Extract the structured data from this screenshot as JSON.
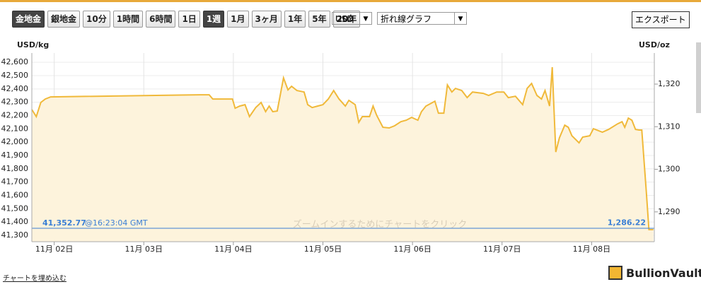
{
  "toolbar": {
    "buttons": [
      "金地金",
      "銀地金",
      "10分",
      "1時間",
      "6時間",
      "1日",
      "1週",
      "1月",
      "3ヶ月",
      "1年",
      "5年",
      "20年"
    ],
    "active": [
      "金地金",
      "1週"
    ],
    "currency": "USD",
    "chart_type": "折れ線グラフ",
    "export": "エクスポート"
  },
  "chart_data": {
    "type": "line",
    "y_label": "USD/kg",
    "y2_label": "USD/oz",
    "watermark": "BullionVault",
    "hint": "ズームインするためにチャートをクリック",
    "color": "#f0b93a",
    "fill": "#fdf3dc",
    "grid": true,
    "x": [
      1.75,
      1.8,
      1.85,
      1.9,
      1.96,
      3.63,
      3.73,
      3.77,
      3.99,
      4.02,
      4.07,
      4.13,
      4.18,
      4.25,
      4.31,
      4.36,
      4.4,
      4.44,
      4.49,
      4.56,
      4.61,
      4.65,
      4.71,
      4.79,
      4.83,
      4.88,
      4.94,
      5.0,
      5.06,
      5.12,
      5.18,
      5.25,
      5.29,
      5.36,
      5.4,
      5.44,
      5.52,
      5.56,
      5.6,
      5.67,
      5.74,
      5.8,
      5.87,
      5.93,
      5.99,
      6.06,
      6.1,
      6.15,
      6.25,
      6.29,
      6.35,
      6.39,
      6.44,
      6.48,
      6.55,
      6.61,
      6.67,
      6.79,
      6.85,
      6.94,
      7.02,
      7.07,
      7.15,
      7.23,
      7.28,
      7.33,
      7.39,
      7.44,
      7.48,
      7.53,
      7.56,
      7.6,
      7.64,
      7.7,
      7.74,
      7.78,
      7.86,
      7.9,
      7.98,
      8.02,
      8.12,
      8.19,
      8.29,
      8.34,
      8.37,
      8.41,
      8.45,
      8.49,
      8.53,
      8.56,
      8.61,
      8.64,
      8.69
    ],
    "values": [
      42245,
      42192,
      42298,
      42324,
      42340,
      42356,
      42356,
      42324,
      42324,
      42255,
      42271,
      42282,
      42192,
      42260,
      42298,
      42229,
      42271,
      42229,
      42234,
      42483,
      42393,
      42420,
      42388,
      42377,
      42282,
      42260,
      42271,
      42282,
      42324,
      42388,
      42324,
      42271,
      42314,
      42282,
      42149,
      42192,
      42192,
      42271,
      42202,
      42112,
      42107,
      42123,
      42154,
      42165,
      42186,
      42165,
      42229,
      42271,
      42308,
      42218,
      42218,
      42430,
      42377,
      42404,
      42388,
      42335,
      42377,
      42367,
      42351,
      42377,
      42377,
      42335,
      42345,
      42282,
      42404,
      42441,
      42351,
      42324,
      42388,
      42271,
      42563,
      41926,
      42032,
      42128,
      42112,
      42048,
      41995,
      42038,
      42048,
      42101,
      42075,
      42096,
      42138,
      42154,
      42112,
      42181,
      42165,
      42096,
      42091,
      42091,
      41634,
      41343,
      41343
    ],
    "xlim": [
      1.75,
      8.7
    ],
    "xticks": [
      {
        "value": 2,
        "label": "11月 02日"
      },
      {
        "value": 3,
        "label": "11月 03日"
      },
      {
        "value": 4,
        "label": "11月 04日"
      },
      {
        "value": 5,
        "label": "11月 05日"
      },
      {
        "value": 6,
        "label": "11月 06日"
      },
      {
        "value": 7,
        "label": "11月 07日"
      },
      {
        "value": 8,
        "label": "11月 08日"
      }
    ],
    "ylim": [
      41252,
      42670
    ],
    "yticks": [
      {
        "value": 41300,
        "label": "41,300"
      },
      {
        "value": 41400,
        "label": "41,400"
      },
      {
        "value": 41500,
        "label": "41,500"
      },
      {
        "value": 41600,
        "label": "41,600"
      },
      {
        "value": 41700,
        "label": "41,700"
      },
      {
        "value": 41800,
        "label": "41,800"
      },
      {
        "value": 41900,
        "label": "41,900"
      },
      {
        "value": 42000,
        "label": "42,000"
      },
      {
        "value": 42100,
        "label": "42,100"
      },
      {
        "value": 42200,
        "label": "42,200"
      },
      {
        "value": 42300,
        "label": "42,300"
      },
      {
        "value": 42400,
        "label": "42,400"
      },
      {
        "value": 42500,
        "label": "42,500"
      },
      {
        "value": 42600,
        "label": "42,600"
      }
    ],
    "y2lim": [
      1283,
      1327.3
    ],
    "y2ticks": [
      {
        "value": 1290,
        "label": "1,290"
      },
      {
        "value": 1300,
        "label": "1,300"
      },
      {
        "value": 1310,
        "label": "1,310"
      },
      {
        "value": 1320,
        "label": "1,320"
      }
    ],
    "current": {
      "value": 41352.77,
      "label": "41,352.77"
    },
    "current_time": "@16:23:04 GMT",
    "current_oz": {
      "value": 1286.22,
      "label": "1,286.22"
    },
    "current_color": "#3a7fd5"
  },
  "footer": {
    "embed_link": "チャートを埋め込む",
    "logo": "BullionVault"
  }
}
